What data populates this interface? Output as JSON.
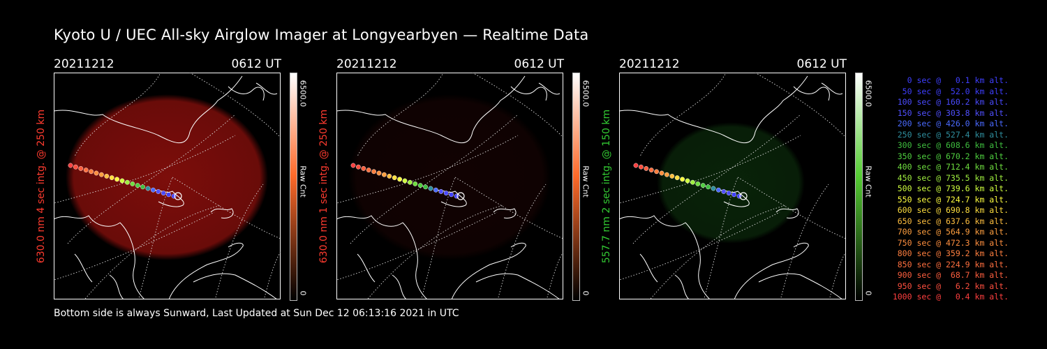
{
  "title": "Kyoto U / UEC All-sky Airglow Imager at Longyearbyen — Realtime Data",
  "footer": "Bottom side is always Sunward, Last Updated at Sun Dec 12 06:13:16 2021 in UTC",
  "panels": [
    {
      "date": "20211212",
      "time": "0612 UT",
      "ylabel": "630.0 nm 4 sec intg. @ 250 km",
      "color": "#ff3b2f",
      "colorbar_max": "6500.0",
      "colorbar_min": "0",
      "colorbar_unit": "Raw Cnt",
      "glow_level": 0.9,
      "glow_color": "#8a0f0c",
      "bar_color": "#ff6a2a"
    },
    {
      "date": "20211212",
      "time": "0612 UT",
      "ylabel": "630.0 nm 1 sec intg. @ 250 km",
      "color": "#ff3b2f",
      "colorbar_max": "6500.0",
      "colorbar_min": "0",
      "colorbar_unit": "Raw Cnt",
      "glow_level": 0.3,
      "glow_color": "#3a0706",
      "bar_color": "#ff6a2a"
    },
    {
      "date": "20211212",
      "time": "0612 UT",
      "ylabel": "557.7 nm 2 sec intg. @ 150 km",
      "color": "#33cc33",
      "colorbar_max": "6500.0",
      "colorbar_min": "0",
      "colorbar_unit": "Raw Cnt",
      "glow_level": 0.6,
      "glow_color": "#0f3a0f",
      "bar_color": "#55cc33"
    }
  ],
  "legend": [
    {
      "text": "   0 sec @   0.1 km alt.",
      "color": "#3f3fff"
    },
    {
      "text": "  50 sec @  52.0 km alt.",
      "color": "#3f3fff"
    },
    {
      "text": " 100 sec @ 160.2 km alt.",
      "color": "#4a4aff"
    },
    {
      "text": " 150 sec @ 303.8 km alt.",
      "color": "#5050ff"
    },
    {
      "text": " 200 sec @ 426.0 km alt.",
      "color": "#4a6aff"
    },
    {
      "text": " 250 sec @ 527.4 km alt.",
      "color": "#2f8f9f"
    },
    {
      "text": " 300 sec @ 608.6 km alt.",
      "color": "#3fbf3f"
    },
    {
      "text": " 350 sec @ 670.2 km alt.",
      "color": "#4fcf3f"
    },
    {
      "text": " 400 sec @ 712.4 km alt.",
      "color": "#6fdf3f"
    },
    {
      "text": " 450 sec @ 735.5 km alt.",
      "color": "#9fef3f"
    },
    {
      "text": " 500 sec @ 739.6 km alt.",
      "color": "#cfff3f"
    },
    {
      "text": " 550 sec @ 724.7 km alt.",
      "color": "#ffff3f"
    },
    {
      "text": " 600 sec @ 690.8 km alt.",
      "color": "#ffdf3f"
    },
    {
      "text": " 650 sec @ 637.6 km alt.",
      "color": "#ffbf3f"
    },
    {
      "text": " 700 sec @ 564.9 km alt.",
      "color": "#ff9f3f"
    },
    {
      "text": " 750 sec @ 472.3 km alt.",
      "color": "#ff8f3f"
    },
    {
      "text": " 800 sec @ 359.2 km alt.",
      "color": "#ff7f3f"
    },
    {
      "text": " 850 sec @ 224.9 km alt.",
      "color": "#ff6f3f"
    },
    {
      "text": " 900 sec @  68.7 km alt.",
      "color": "#ff5f3f"
    },
    {
      "text": " 950 sec @   6.2 km alt.",
      "color": "#ff4f3f"
    },
    {
      "text": "1000 sec @   0.4 km alt.",
      "color": "#ff3f3f"
    }
  ]
}
